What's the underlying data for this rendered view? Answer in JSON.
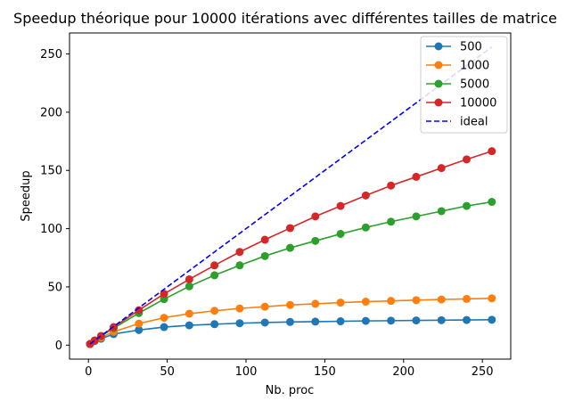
{
  "chart_data": {
    "type": "line",
    "title": "Speedup théorique pour 10000 itérations avec différentes tailles de matrice",
    "xlabel": "Nb. proc",
    "ylabel": "Speedup",
    "xlim": [
      -12,
      268
    ],
    "ylim": [
      -12,
      268
    ],
    "xticks": [
      0,
      50,
      100,
      150,
      200,
      250
    ],
    "yticks": [
      0,
      50,
      100,
      150,
      200,
      250
    ],
    "grid": false,
    "legend_position": "top-right",
    "x": [
      1,
      4,
      8,
      16,
      32,
      48,
      64,
      80,
      96,
      112,
      128,
      144,
      160,
      176,
      192,
      208,
      224,
      240,
      256
    ],
    "series": [
      {
        "name": "500",
        "color": "#1f77b4",
        "marker": "circle",
        "values": [
          1,
          3.5,
          5.5,
          9.5,
          13,
          15.5,
          17,
          18,
          18.8,
          19.4,
          19.9,
          20.2,
          20.5,
          20.8,
          21,
          21.2,
          21.4,
          21.6,
          21.8
        ]
      },
      {
        "name": "1000",
        "color": "#ff7f0e",
        "marker": "circle",
        "values": [
          1,
          4,
          6.5,
          11.5,
          18.5,
          23.5,
          27,
          29.5,
          31.5,
          33,
          34.5,
          35.5,
          36.5,
          37.3,
          38,
          38.6,
          39.2,
          39.7,
          40.2
        ]
      },
      {
        "name": "5000",
        "color": "#2ca02c",
        "marker": "circle",
        "values": [
          1,
          4,
          7.7,
          14.5,
          27.5,
          39.5,
          50.5,
          60,
          68.5,
          76.5,
          83.5,
          89.5,
          95.5,
          101,
          106,
          110.5,
          115,
          119.5,
          123
        ]
      },
      {
        "name": "10000",
        "color": "#d62728",
        "marker": "circle",
        "values": [
          1,
          4,
          7.9,
          15.5,
          30,
          44,
          56.5,
          68.5,
          80,
          90.5,
          100.5,
          110.5,
          119.5,
          128.5,
          137,
          144.5,
          152,
          159.5,
          166.5
        ]
      },
      {
        "name": "ideal",
        "color": "#0000ff",
        "style": "dashed",
        "marker": "none",
        "x": [
          1,
          256
        ],
        "values": [
          1,
          256
        ]
      }
    ]
  }
}
